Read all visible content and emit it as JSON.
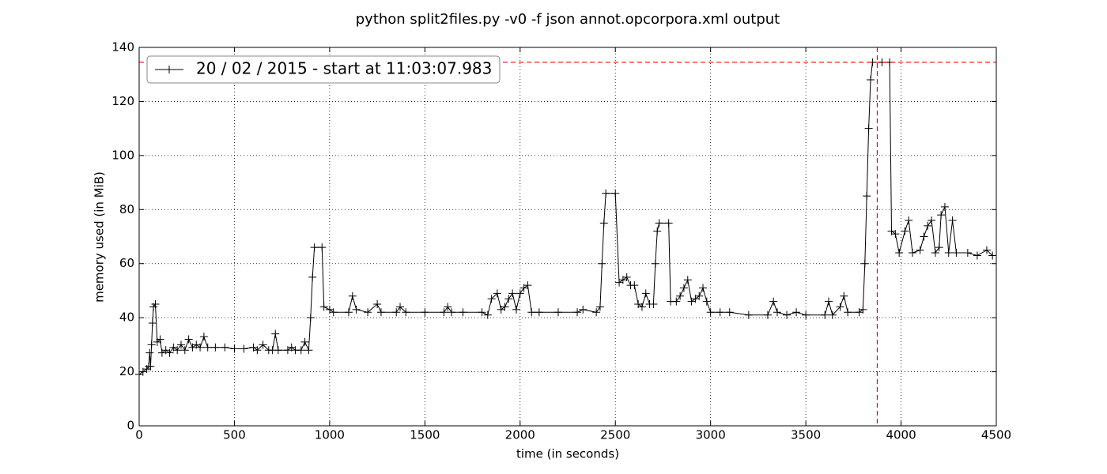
{
  "chart_data": {
    "type": "line",
    "title": "python split2files.py -v0 -f json annot.opcorpora.xml output",
    "x_label": "time (in seconds)",
    "y_label": "memory used (in MiB)",
    "xlim": [
      0,
      4500
    ],
    "xticks": [
      0,
      500,
      1000,
      1500,
      2000,
      2500,
      3000,
      3500,
      4000,
      4500
    ],
    "ylim": [
      0,
      140
    ],
    "yticks": [
      0,
      20,
      40,
      60,
      80,
      100,
      120,
      140
    ],
    "grid": true,
    "legend": "upper left",
    "max_line": {
      "value": 134.5,
      "x": 3875,
      "color": "#ff0000"
    },
    "series": [
      {
        "name": "20 / 02 / 2015 - start at 11:03:07.983",
        "color": "#000000",
        "x": [
          0,
          20,
          40,
          50,
          55,
          60,
          65,
          70,
          75,
          85,
          95,
          110,
          120,
          140,
          160,
          180,
          200,
          220,
          240,
          260,
          280,
          300,
          320,
          340,
          360,
          400,
          450,
          500,
          550,
          600,
          620,
          650,
          680,
          700,
          715,
          730,
          780,
          800,
          820,
          850,
          870,
          890,
          900,
          910,
          920,
          960,
          970,
          1000,
          1020,
          1100,
          1120,
          1140,
          1200,
          1250,
          1270,
          1350,
          1370,
          1400,
          1500,
          1600,
          1620,
          1640,
          1700,
          1800,
          1830,
          1850,
          1880,
          1900,
          1920,
          1940,
          1960,
          1980,
          2000,
          2020,
          2040,
          2060,
          2100,
          2200,
          2300,
          2330,
          2400,
          2420,
          2430,
          2440,
          2450,
          2500,
          2520,
          2540,
          2560,
          2580,
          2600,
          2620,
          2640,
          2660,
          2680,
          2700,
          2710,
          2720,
          2730,
          2780,
          2790,
          2820,
          2840,
          2860,
          2880,
          2900,
          2920,
          2940,
          2960,
          2980,
          3000,
          3050,
          3100,
          3200,
          3300,
          3330,
          3350,
          3400,
          3450,
          3500,
          3600,
          3620,
          3640,
          3680,
          3700,
          3720,
          3780,
          3800,
          3810,
          3820,
          3830,
          3840,
          3850,
          3900,
          3940,
          3950,
          3970,
          3990,
          4020,
          4040,
          4060,
          4100,
          4120,
          4140,
          4160,
          4180,
          4200,
          4210,
          4230,
          4250,
          4270,
          4290,
          4350,
          4400,
          4450,
          4480
        ],
        "values": [
          19,
          20,
          21,
          22,
          27,
          22,
          30,
          38,
          44,
          45,
          31,
          32,
          27,
          28,
          27,
          29,
          28,
          30,
          28,
          32,
          29,
          30,
          29,
          33,
          29,
          29,
          29,
          28.5,
          28.5,
          29,
          28,
          30,
          28,
          28,
          34,
          28,
          28,
          29,
          28,
          28,
          31,
          28,
          40,
          55,
          66,
          66,
          44,
          43,
          42,
          42,
          48,
          43,
          42,
          45,
          42,
          42,
          44,
          42,
          42,
          42,
          44,
          42,
          42,
          42,
          41,
          47,
          49,
          43,
          44,
          47,
          49,
          43,
          49,
          51,
          52,
          42,
          42,
          42,
          42,
          43,
          42,
          44,
          60,
          75,
          86,
          86,
          53,
          54,
          55,
          52,
          52,
          45,
          44,
          49,
          45,
          45,
          60,
          72,
          75,
          75,
          46,
          46,
          48,
          51,
          54,
          46,
          47,
          48,
          51,
          46,
          42,
          42,
          42,
          41,
          41,
          46,
          42,
          41,
          42,
          41,
          41,
          46,
          41,
          44,
          48,
          42,
          42,
          43,
          60,
          85,
          110,
          128,
          134.5,
          134.5,
          134.5,
          72,
          71,
          64,
          72,
          76,
          64,
          65,
          70,
          74,
          76,
          64,
          66,
          78,
          81,
          64,
          76,
          64,
          64,
          63,
          65,
          63
        ]
      }
    ]
  }
}
